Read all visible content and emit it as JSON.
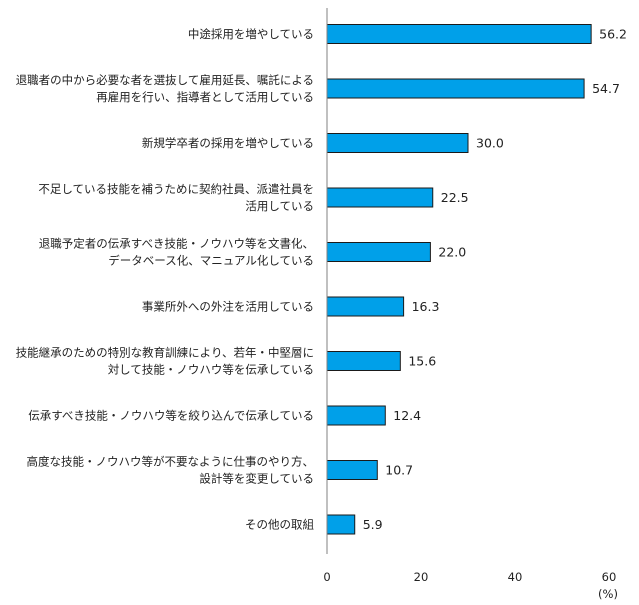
{
  "chart_data": {
    "type": "bar",
    "orientation": "horizontal",
    "title": "",
    "xlabel": "",
    "ylabel": "",
    "unit": "(%)",
    "xlim": [
      0,
      60
    ],
    "xticks": [
      0,
      20,
      40,
      60
    ],
    "grid": false,
    "bar_color": "#00A0E9",
    "bar_edge_color": "#1a1a1a",
    "categories": [
      [
        "中途採用を増やしている"
      ],
      [
        "退職者の中から必要な者を選抜して雇用延長、嘱託による",
        "再雇用を行い、指導者として活用している"
      ],
      [
        "新規学卒者の採用を増やしている"
      ],
      [
        "不足している技能を補うために契約社員、派遣社員を",
        "活用している"
      ],
      [
        "退職予定者の伝承すべき技能・ノウハウ等を文書化、",
        "データベース化、マニュアル化している"
      ],
      [
        "事業所外への外注を活用している"
      ],
      [
        "技能継承のための特別な教育訓練により、若年・中堅層に",
        "対して技能・ノウハウ等を伝承している"
      ],
      [
        "伝承すべき技能・ノウハウ等を絞り込んで伝承している"
      ],
      [
        "高度な技能・ノウハウ等が不要なように仕事のやり方、",
        "設計等を変更している"
      ],
      [
        "その他の取組"
      ]
    ],
    "values": [
      56.2,
      54.7,
      30.0,
      22.5,
      22.0,
      16.3,
      15.6,
      12.4,
      10.7,
      5.9
    ],
    "value_labels": [
      "56.2",
      "54.7",
      "30.0",
      "22.5",
      "22.0",
      "16.3",
      "15.6",
      "12.4",
      "10.7",
      "5.9"
    ]
  }
}
